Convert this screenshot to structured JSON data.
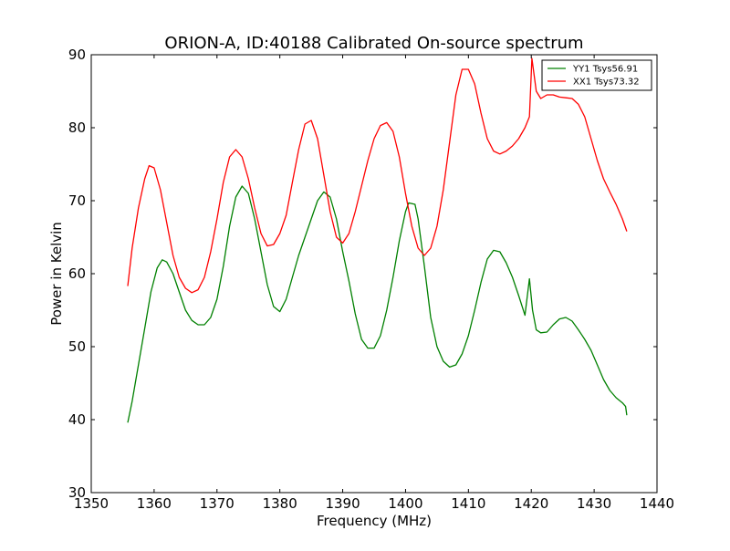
{
  "chart_data": {
    "type": "line",
    "title": "ORION-A, ID:40188 Calibrated On-source spectrum",
    "xlabel": "Frequency (MHz)",
    "ylabel": "Power in Kelvin",
    "xlim": [
      1350,
      1440
    ],
    "ylim": [
      30,
      90
    ],
    "xticks": [
      1350,
      1360,
      1370,
      1380,
      1390,
      1400,
      1410,
      1420,
      1430,
      1440
    ],
    "yticks": [
      30,
      40,
      50,
      60,
      70,
      80,
      90
    ],
    "grid": false,
    "legend_position": "top-right",
    "series": [
      {
        "name": "YY1 Tsys56.91",
        "color": "#008000",
        "points": [
          [
            1355.8,
            39.6
          ],
          [
            1356.5,
            42.5
          ],
          [
            1357.5,
            47.5
          ],
          [
            1358.5,
            52.5
          ],
          [
            1359.5,
            57.5
          ],
          [
            1360.5,
            60.8
          ],
          [
            1361.3,
            61.9
          ],
          [
            1362.0,
            61.6
          ],
          [
            1363.0,
            60.0
          ],
          [
            1364.0,
            57.5
          ],
          [
            1365.0,
            55.0
          ],
          [
            1366.0,
            53.6
          ],
          [
            1367.0,
            53.0
          ],
          [
            1368.0,
            53.0
          ],
          [
            1369.0,
            54.0
          ],
          [
            1370.0,
            56.5
          ],
          [
            1371.0,
            61.0
          ],
          [
            1372.0,
            66.5
          ],
          [
            1373.0,
            70.5
          ],
          [
            1374.0,
            72.0
          ],
          [
            1375.0,
            71.0
          ],
          [
            1376.0,
            67.5
          ],
          [
            1377.0,
            63.0
          ],
          [
            1378.0,
            58.5
          ],
          [
            1379.0,
            55.5
          ],
          [
            1380.0,
            54.8
          ],
          [
            1381.0,
            56.5
          ],
          [
            1382.0,
            59.5
          ],
          [
            1383.0,
            62.5
          ],
          [
            1384.0,
            65.0
          ],
          [
            1385.0,
            67.5
          ],
          [
            1386.0,
            70.0
          ],
          [
            1387.0,
            71.2
          ],
          [
            1388.0,
            70.5
          ],
          [
            1389.0,
            67.5
          ],
          [
            1390.0,
            63.0
          ],
          [
            1391.0,
            59.0
          ],
          [
            1392.0,
            54.5
          ],
          [
            1393.0,
            51.0
          ],
          [
            1394.0,
            49.8
          ],
          [
            1395.0,
            49.8
          ],
          [
            1396.0,
            51.5
          ],
          [
            1397.0,
            55.0
          ],
          [
            1398.0,
            59.5
          ],
          [
            1399.0,
            64.5
          ],
          [
            1400.0,
            68.5
          ],
          [
            1400.5,
            69.7
          ],
          [
            1401.5,
            69.5
          ],
          [
            1402.0,
            67.5
          ],
          [
            1403.0,
            61.0
          ],
          [
            1404.0,
            54.0
          ],
          [
            1405.0,
            50.0
          ],
          [
            1406.0,
            48.0
          ],
          [
            1407.0,
            47.2
          ],
          [
            1408.0,
            47.5
          ],
          [
            1409.0,
            49.0
          ],
          [
            1410.0,
            51.5
          ],
          [
            1411.0,
            55.0
          ],
          [
            1412.0,
            58.8
          ],
          [
            1413.0,
            62.0
          ],
          [
            1414.0,
            63.2
          ],
          [
            1415.0,
            63.0
          ],
          [
            1416.0,
            61.5
          ],
          [
            1417.0,
            59.5
          ],
          [
            1418.0,
            57.0
          ],
          [
            1419.0,
            54.3
          ],
          [
            1419.7,
            59.3
          ],
          [
            1420.2,
            55.0
          ],
          [
            1420.8,
            52.3
          ],
          [
            1421.5,
            51.9
          ],
          [
            1422.5,
            52.0
          ],
          [
            1423.5,
            53.0
          ],
          [
            1424.5,
            53.8
          ],
          [
            1425.5,
            54.0
          ],
          [
            1426.5,
            53.5
          ],
          [
            1427.5,
            52.3
          ],
          [
            1428.5,
            51.0
          ],
          [
            1429.5,
            49.5
          ],
          [
            1430.5,
            47.5
          ],
          [
            1431.5,
            45.5
          ],
          [
            1432.5,
            44.0
          ],
          [
            1433.5,
            43.0
          ],
          [
            1434.5,
            42.3
          ],
          [
            1435.0,
            41.8
          ],
          [
            1435.2,
            40.6
          ]
        ]
      },
      {
        "name": "XX1 Tsys73.32",
        "color": "#ff0000",
        "points": [
          [
            1355.8,
            58.3
          ],
          [
            1356.5,
            63.5
          ],
          [
            1357.5,
            69.0
          ],
          [
            1358.5,
            73.0
          ],
          [
            1359.2,
            74.8
          ],
          [
            1360.0,
            74.5
          ],
          [
            1361.0,
            71.5
          ],
          [
            1362.0,
            67.0
          ],
          [
            1363.0,
            62.5
          ],
          [
            1364.0,
            59.5
          ],
          [
            1365.0,
            58.0
          ],
          [
            1366.0,
            57.4
          ],
          [
            1367.0,
            57.8
          ],
          [
            1368.0,
            59.5
          ],
          [
            1369.0,
            63.0
          ],
          [
            1370.0,
            67.5
          ],
          [
            1371.0,
            72.5
          ],
          [
            1372.0,
            76.0
          ],
          [
            1373.0,
            77.0
          ],
          [
            1374.0,
            76.0
          ],
          [
            1375.0,
            73.0
          ],
          [
            1376.0,
            69.0
          ],
          [
            1377.0,
            65.5
          ],
          [
            1378.0,
            63.8
          ],
          [
            1379.0,
            64.0
          ],
          [
            1380.0,
            65.5
          ],
          [
            1381.0,
            68.0
          ],
          [
            1382.0,
            72.5
          ],
          [
            1383.0,
            77.0
          ],
          [
            1384.0,
            80.5
          ],
          [
            1385.0,
            81.0
          ],
          [
            1386.0,
            78.5
          ],
          [
            1387.0,
            73.5
          ],
          [
            1388.0,
            68.5
          ],
          [
            1389.0,
            65.0
          ],
          [
            1390.0,
            64.2
          ],
          [
            1391.0,
            65.5
          ],
          [
            1392.0,
            68.5
          ],
          [
            1393.0,
            72.0
          ],
          [
            1394.0,
            75.5
          ],
          [
            1395.0,
            78.5
          ],
          [
            1396.0,
            80.3
          ],
          [
            1397.0,
            80.7
          ],
          [
            1398.0,
            79.5
          ],
          [
            1399.0,
            76.0
          ],
          [
            1400.0,
            71.0
          ],
          [
            1401.0,
            66.5
          ],
          [
            1402.0,
            63.5
          ],
          [
            1403.0,
            62.5
          ],
          [
            1404.0,
            63.5
          ],
          [
            1405.0,
            66.5
          ],
          [
            1406.0,
            71.5
          ],
          [
            1407.0,
            78.0
          ],
          [
            1408.0,
            84.5
          ],
          [
            1409.0,
            88.0
          ],
          [
            1410.0,
            88.0
          ],
          [
            1411.0,
            86.0
          ],
          [
            1412.0,
            82.0
          ],
          [
            1413.0,
            78.5
          ],
          [
            1414.0,
            76.8
          ],
          [
            1415.0,
            76.4
          ],
          [
            1416.0,
            76.8
          ],
          [
            1417.0,
            77.5
          ],
          [
            1418.0,
            78.5
          ],
          [
            1419.0,
            80.0
          ],
          [
            1419.7,
            81.5
          ],
          [
            1420.1,
            89.5
          ],
          [
            1420.8,
            85.0
          ],
          [
            1421.5,
            84.0
          ],
          [
            1422.5,
            84.5
          ],
          [
            1423.5,
            84.5
          ],
          [
            1424.5,
            84.2
          ],
          [
            1425.5,
            84.1
          ],
          [
            1426.5,
            84.0
          ],
          [
            1427.5,
            83.2
          ],
          [
            1428.5,
            81.5
          ],
          [
            1429.5,
            78.5
          ],
          [
            1430.5,
            75.5
          ],
          [
            1431.5,
            73.0
          ],
          [
            1432.5,
            71.2
          ],
          [
            1433.5,
            69.5
          ],
          [
            1434.5,
            67.5
          ],
          [
            1435.2,
            65.8
          ]
        ]
      }
    ]
  }
}
